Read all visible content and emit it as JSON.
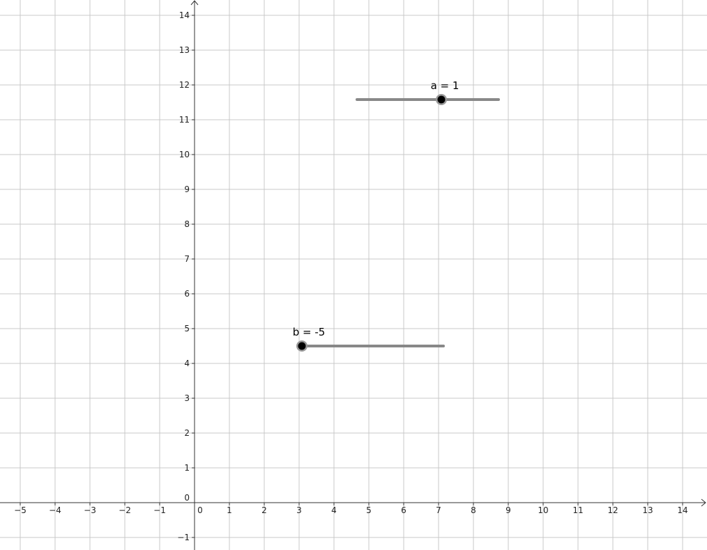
{
  "graphics_view": {
    "x_axis": {
      "ticks": [
        {
          "value": -5,
          "label": "−5"
        },
        {
          "value": -4,
          "label": "−4"
        },
        {
          "value": -3,
          "label": "−3"
        },
        {
          "value": -2,
          "label": "−2"
        },
        {
          "value": -1,
          "label": "−1"
        },
        0,
        1,
        2,
        3,
        4,
        5,
        6,
        7,
        8,
        9,
        10,
        11,
        12,
        13,
        14
      ]
    },
    "y_axis": {
      "ticks": [
        {
          "value": -1,
          "label": "−1"
        },
        0,
        1,
        2,
        3,
        4,
        5,
        6,
        7,
        8,
        9,
        10,
        11,
        12,
        13,
        14
      ]
    },
    "sliders": [
      {
        "label": "a = 1"
      },
      {
        "label": "b = -5"
      }
    ]
  }
}
